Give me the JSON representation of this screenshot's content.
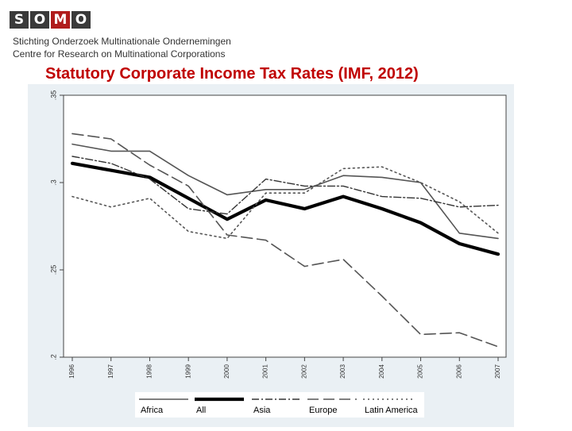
{
  "header": {
    "logo_letters": [
      "S",
      "O",
      "M",
      "O"
    ],
    "logo_colors": [
      "#3a3a3a",
      "#3a3a3a",
      "#b01c1c",
      "#3a3a3a"
    ],
    "org_name": "Stichting Onderzoek Multinationale Ondernemingen",
    "org_subtitle": "Centre for Research on Multinational Corporations"
  },
  "slide_title": "Statutory Corporate Income Tax Rates (IMF, 2012)",
  "chart_data": {
    "type": "line",
    "x": [
      "1996",
      "1997",
      "1998",
      "1999",
      "2000",
      "2001",
      "2002",
      "2003",
      "2004",
      "2005",
      "2006",
      "2007"
    ],
    "ylim": [
      0.2,
      0.35
    ],
    "yticks": [
      ".2",
      ".25",
      ".3",
      ".35"
    ],
    "grid": false,
    "legend_position": "bottom",
    "series": [
      {
        "name": "Africa",
        "style": "solid",
        "values": [
          0.322,
          0.318,
          0.318,
          0.304,
          0.293,
          0.296,
          0.296,
          0.304,
          0.303,
          0.3,
          0.271,
          0.268
        ]
      },
      {
        "name": "All",
        "style": "thick",
        "values": [
          0.311,
          0.307,
          0.303,
          0.291,
          0.279,
          0.29,
          0.285,
          0.292,
          0.285,
          0.277,
          0.265,
          0.259
        ]
      },
      {
        "name": "Asia",
        "style": "dashdot",
        "values": [
          0.315,
          0.311,
          0.302,
          0.285,
          0.282,
          0.302,
          0.298,
          0.298,
          0.292,
          0.291,
          0.286,
          0.287
        ]
      },
      {
        "name": "Europe",
        "style": "longdash",
        "values": [
          0.328,
          0.325,
          0.31,
          0.298,
          0.27,
          0.267,
          0.252,
          0.256,
          0.235,
          0.213,
          0.214,
          0.206
        ]
      },
      {
        "name": "Latin America",
        "style": "dotted",
        "values": [
          0.292,
          0.286,
          0.291,
          0.272,
          0.268,
          0.294,
          0.294,
          0.308,
          0.309,
          0.3,
          0.289,
          0.271
        ]
      }
    ]
  }
}
